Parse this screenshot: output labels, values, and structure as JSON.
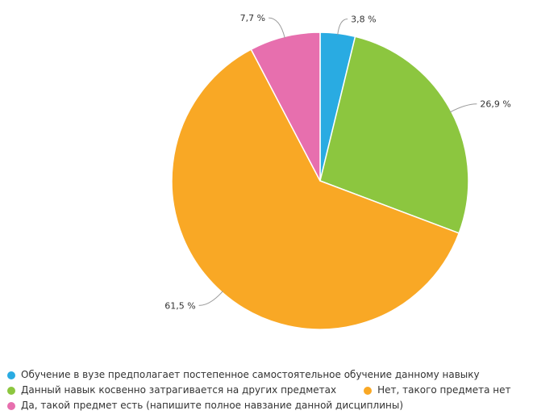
{
  "chart_data": {
    "type": "pie",
    "series": [
      {
        "name": "Обучение в вузе предполагает постепенное самостоятельное обучение данному навыку",
        "value": 3.8,
        "label": "3,8 %",
        "color": "#29abe2"
      },
      {
        "name": "Данный навык косвенно затрагивается на других предметах",
        "value": 26.9,
        "label": "26,9 %",
        "color": "#8cc63f"
      },
      {
        "name": "Нет, такого предмета нет",
        "value": 61.5,
        "label": "61,5 %",
        "color": "#f9a825"
      },
      {
        "name": "Да, такой предмет есть (напишите полное навзание данной дисциплины)",
        "value": 7.7,
        "label": "7,7 %",
        "color": "#e76fae"
      }
    ],
    "legend_position": "bottom"
  }
}
